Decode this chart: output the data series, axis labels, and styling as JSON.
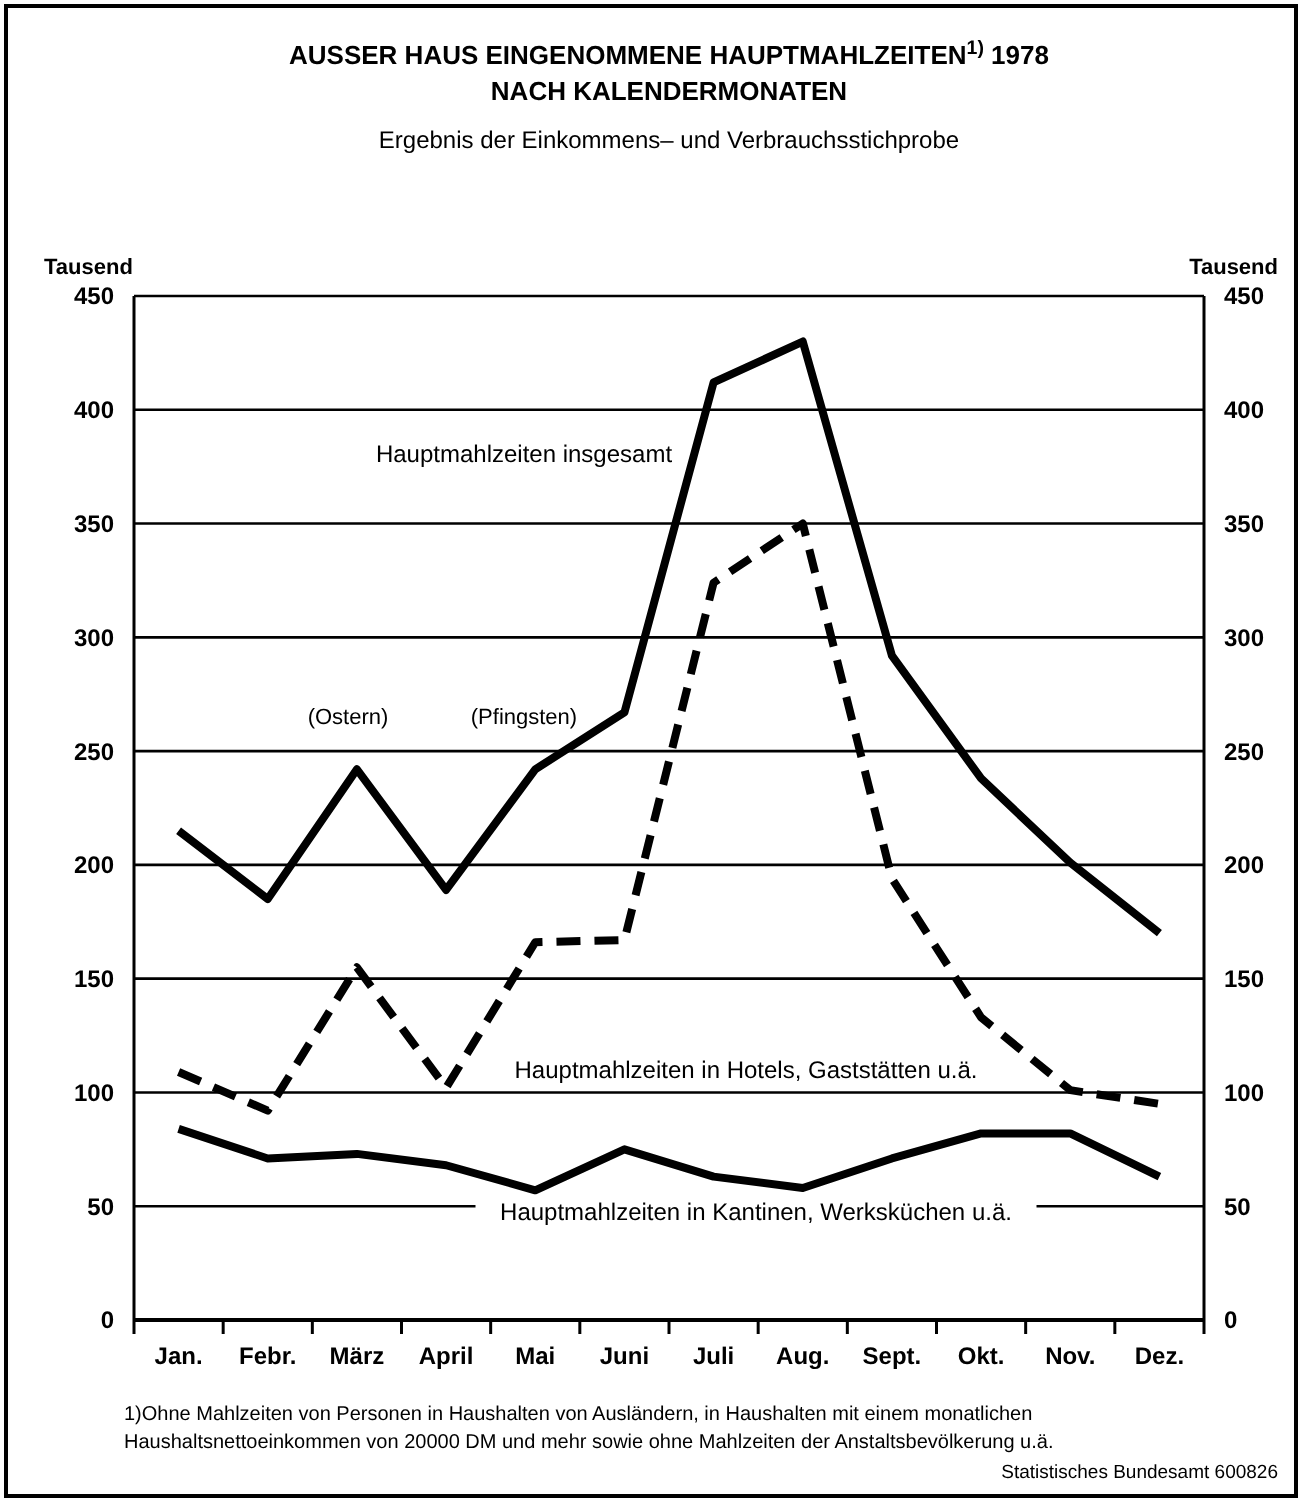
{
  "chart_data": {
    "type": "line",
    "title": "AUSSER HAUS EINGENOMMENE HAUPTMAHLZEITEN$^{1)}$ 1978\nNACH KALENDERMONATEN",
    "subtitle": "Ergebnis der Einkommens– und Verbrauchsstichprobe",
    "ylabel": "Tausend",
    "y2label": "Tausend",
    "categories": [
      "Jan.",
      "Febr.",
      "März",
      "April",
      "Mai",
      "Juni",
      "Juli",
      "Aug.",
      "Sept.",
      "Okt.",
      "Nov.",
      "Dez."
    ],
    "series": [
      {
        "name": "Hauptmahlzeiten insgesamt",
        "color": "#000000",
        "line_style": "solid",
        "values": [
          215,
          185,
          242,
          189,
          242,
          267,
          412,
          430,
          292,
          238,
          201,
          170
        ]
      },
      {
        "name": "Hauptmahlzeiten in Hotels, Gaststätten u.ä.",
        "color": "#000000",
        "line_style": "dashed",
        "values": [
          109,
          92,
          155,
          102,
          166,
          167,
          324,
          350,
          194,
          133,
          101,
          95
        ]
      },
      {
        "name": "Hauptmahlzeiten in Kantinen, Werksküchen u.ä.",
        "color": "#000000",
        "line_style": "solid",
        "values": [
          84,
          71,
          73,
          68,
          57,
          75,
          63,
          58,
          71,
          82,
          82,
          63
        ]
      }
    ],
    "ylim": [
      0,
      450
    ],
    "yticks": [
      0,
      50,
      100,
      150,
      200,
      250,
      300,
      350,
      400,
      450
    ],
    "y2lim": [
      0,
      450
    ],
    "y2ticks": [
      0,
      50,
      100,
      150,
      200,
      250,
      300,
      350,
      400,
      450
    ],
    "grid": "y",
    "marker": "none",
    "annotations": [
      "(Ostern)",
      "(Pfingsten)",
      "1)Ohne Mahlzeiten von Personen in Haushalten von Ausländern, in Haushalten mit einem monatlichen Haushaltsnettoeinkommen von 20000 DM und mehr sowie ohne Mahlzeiten der Anstaltsbevölkerung u.ä.",
      "Statistisches Bundesamt 600826"
    ]
  }
}
